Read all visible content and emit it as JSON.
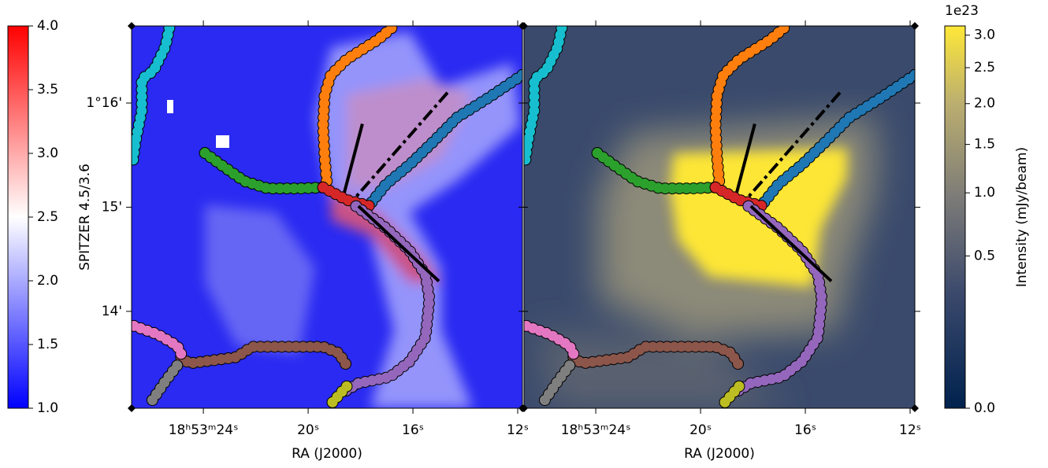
{
  "chart_data": {
    "type": "image-pair",
    "x_label": "RA (J2000)",
    "xlim": [
      26.74,
      11.82
    ],
    "xticks": [
      {
        "value": 24,
        "label": "18ʰ53ᵐ24ˢ"
      },
      {
        "value": 20,
        "label": "20ˢ"
      },
      {
        "value": 16,
        "label": "16ˢ"
      },
      {
        "value": 12,
        "label": "12ˢ"
      }
    ],
    "ylim": [
      13.07,
      16.74
    ],
    "yticks": [
      {
        "value": 14,
        "label": "14'"
      },
      {
        "value": 15,
        "label": "15'"
      },
      {
        "value": 16,
        "label": "1°16'"
      }
    ],
    "filaments": [
      {
        "color": "#17becf",
        "x": [
          25.3,
          25.45,
          25.9,
          26.35,
          26.35,
          26.59,
          26.71
        ],
        "y": [
          16.72,
          16.54,
          16.31,
          16.23,
          15.93,
          15.63,
          15.41
        ]
      },
      {
        "color": "#ff7f0e",
        "x": [
          16.82,
          17.33,
          18.53,
          19.13,
          19.37,
          19.43,
          19.37,
          19.28
        ],
        "y": [
          16.72,
          16.61,
          16.42,
          16.27,
          16.08,
          15.78,
          15.48,
          15.22
        ]
      },
      {
        "color": "#1f77b4",
        "x": [
          11.82,
          13.12,
          14.32,
          15.22,
          16.12,
          17.03,
          17.69
        ],
        "y": [
          16.27,
          16.05,
          15.86,
          15.63,
          15.41,
          15.22,
          15.01
        ]
      },
      {
        "color": "#2ca02c",
        "x": [
          23.94,
          23.34,
          22.44,
          21.54,
          20.33,
          19.43
        ],
        "y": [
          15.52,
          15.41,
          15.25,
          15.18,
          15.18,
          15.19
        ]
      },
      {
        "color": "#d62728",
        "x": [
          19.43,
          18.53,
          17.63
        ],
        "y": [
          15.19,
          15.07,
          15.01
        ]
      },
      {
        "color": "#9467bd",
        "x": [
          18.17,
          17.03,
          16.12,
          15.52,
          15.37,
          15.52,
          16.12,
          16.88,
          18.08,
          18.68
        ],
        "y": [
          15.01,
          14.8,
          14.58,
          14.35,
          14.12,
          13.75,
          13.52,
          13.37,
          13.31,
          13.22
        ]
      },
      {
        "color": "#bcbd22",
        "x": [
          18.53,
          19.13
        ],
        "y": [
          13.28,
          13.11
        ]
      },
      {
        "color": "#8c564b",
        "x": [
          24.85,
          24.54,
          22.74,
          22.14,
          19.43,
          18.83,
          18.53
        ],
        "y": [
          13.56,
          13.5,
          13.56,
          13.66,
          13.66,
          13.6,
          13.48
        ]
      },
      {
        "color": "#e377c2",
        "x": [
          26.65,
          25.75,
          25.0,
          24.79
        ],
        "y": [
          13.86,
          13.78,
          13.67,
          13.56
        ]
      },
      {
        "color": "#7f7f7f",
        "x": [
          25.0,
          25.45,
          26.05
        ],
        "y": [
          13.48,
          13.33,
          13.11
        ]
      }
    ],
    "cuts": [
      {
        "style": "solid",
        "x": [
          17.93,
          18.62
        ],
        "y": [
          15.8,
          15.14
        ]
      },
      {
        "style": "dashdot",
        "x": [
          14.68,
          18.17
        ],
        "y": [
          16.1,
          15.1
        ]
      },
      {
        "style": "solid",
        "x": [
          18.08,
          15.01
        ],
        "y": [
          15.01,
          14.29
        ]
      }
    ],
    "colorbars": [
      {
        "label": "SPITZER 4.5/3.6",
        "lim": [
          1,
          4
        ],
        "ticks": [
          {
            "value": 1,
            "label": "1.0"
          },
          {
            "value": 1.5,
            "label": "1.5"
          },
          {
            "value": 2,
            "label": "2.0"
          },
          {
            "value": 2.5,
            "label": "2.5"
          },
          {
            "value": 3,
            "label": "3.0"
          },
          {
            "value": 3.5,
            "label": "3.5"
          },
          {
            "value": 4,
            "label": "4.0"
          }
        ]
      },
      {
        "label": "Intensity (mJy/beam)",
        "offset_label": "1e23",
        "scale": "sqrt",
        "lim": [
          0,
          3.15
        ],
        "ticks": [
          {
            "value": 0,
            "label": "0.0"
          },
          {
            "value": 0.5,
            "label": "0.5"
          },
          {
            "value": 1,
            "label": "1.0"
          },
          {
            "value": 1.5,
            "label": "1.5"
          },
          {
            "value": 2,
            "label": "2.0"
          },
          {
            "value": 2.5,
            "label": "2.5"
          },
          {
            "value": 3,
            "label": "3.0"
          }
        ]
      }
    ]
  }
}
